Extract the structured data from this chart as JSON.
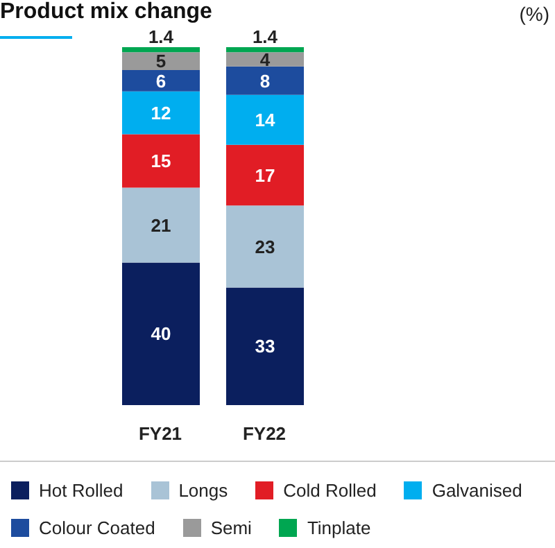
{
  "chart_data": {
    "type": "bar",
    "title": "Product mix change",
    "annotations": [
      "(%)"
    ],
    "categories": [
      "FY21",
      "FY22"
    ],
    "stacked": true,
    "data_labels": true,
    "grid": false,
    "legend": "bottom",
    "series": [
      {
        "name": "Hot Rolled",
        "color": "#0b1f5e",
        "values": [
          40,
          33
        ]
      },
      {
        "name": "Longs",
        "color": "#a9c3d6",
        "values": [
          21,
          23
        ]
      },
      {
        "name": "Cold Rolled",
        "color": "#e11d25",
        "values": [
          15,
          17
        ]
      },
      {
        "name": "Galvanised",
        "color": "#00aeef",
        "values": [
          12,
          14
        ]
      },
      {
        "name": "Colour Coated",
        "color": "#1d4c9e",
        "values": [
          6,
          8
        ]
      },
      {
        "name": "Semi",
        "color": "#9a9a9a",
        "values": [
          5,
          4
        ]
      },
      {
        "name": "Tinplate",
        "color": "#00a651",
        "values": [
          1.4,
          1.4
        ]
      }
    ]
  }
}
